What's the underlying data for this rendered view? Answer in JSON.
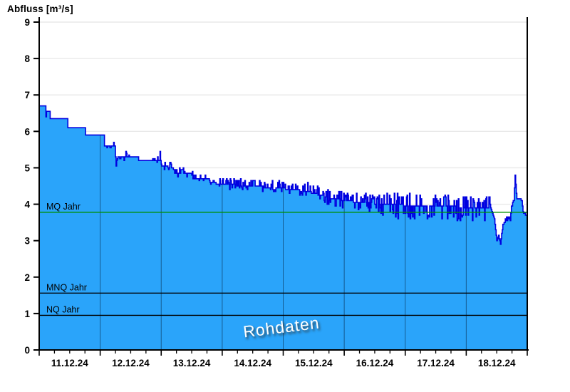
{
  "chart_data": {
    "type": "area",
    "title": "Abfluss [m³/s]",
    "watermark": "Rohdaten",
    "xlabel": "",
    "ylabel": "Abfluss [m³/s]",
    "ylim": [
      0,
      9
    ],
    "y_ticks": [
      0,
      1,
      2,
      3,
      4,
      5,
      6,
      7,
      8,
      9
    ],
    "days": 8,
    "day_labels": [
      "11.12.24",
      "12.12.24",
      "13.12.24",
      "14.12.24",
      "15.12.24",
      "16.12.24",
      "17.12.24",
      "18.12.24"
    ],
    "minor_ticks_per_day": 4,
    "grid": "horizontal-light, vertical day separators visible inside filled area",
    "legend": "none",
    "colors": {
      "fill": "#2aa4fa",
      "line": "#0000e0",
      "grid": "#e9e9e9",
      "day_separator": "rgba(0,20,40,0.5)",
      "axis": "#000000",
      "mq_line": "#009000",
      "ref_line": "#000000",
      "watermark_text": "#ffffff"
    },
    "reference_lines": [
      {
        "label": "MQ Jahr",
        "value": 3.78,
        "color": "#009000"
      },
      {
        "label": "MNQ Jahr",
        "value": 1.56,
        "color": "#000000"
      },
      {
        "label": "NQ Jahr",
        "value": 0.95,
        "color": "#000000"
      }
    ],
    "series_name": "Abfluss Rohdaten",
    "series_note": "Raw 15-min discharge data, stepped recession from 6.7 to ~3.9 m³/s with increasing measurement noise, a dip to ~2.9 late on 18.12 and a short peak to ~4.8 before ending near 3.7",
    "envelope": [
      [
        0.0,
        6.7
      ],
      [
        0.1,
        6.7
      ],
      [
        0.11,
        6.4
      ],
      [
        0.12,
        6.55
      ],
      [
        0.17,
        6.55
      ],
      [
        0.18,
        6.35
      ],
      [
        0.46,
        6.35
      ],
      [
        0.47,
        6.1
      ],
      [
        0.75,
        6.1
      ],
      [
        0.76,
        5.9
      ],
      [
        1.06,
        5.9
      ],
      [
        1.07,
        5.6
      ],
      [
        1.24,
        5.6
      ],
      [
        1.26,
        5.05
      ],
      [
        1.28,
        5.3
      ],
      [
        1.41,
        5.3
      ],
      [
        1.42,
        5.45
      ],
      [
        1.43,
        5.3
      ],
      [
        1.62,
        5.3
      ],
      [
        1.63,
        5.2
      ],
      [
        1.97,
        5.2
      ],
      [
        1.98,
        5.45
      ],
      [
        1.99,
        5.2
      ],
      [
        2.01,
        5.05
      ],
      [
        2.2,
        5.0
      ],
      [
        2.22,
        4.85
      ],
      [
        2.5,
        4.85
      ],
      [
        2.52,
        4.7
      ],
      [
        2.78,
        4.7
      ],
      [
        2.8,
        4.6
      ],
      [
        3.0,
        4.55
      ],
      [
        3.45,
        4.5
      ],
      [
        3.9,
        4.45
      ],
      [
        4.4,
        4.35
      ],
      [
        4.7,
        4.2
      ],
      [
        5.0,
        4.1
      ],
      [
        5.6,
        4.0
      ],
      [
        6.3,
        3.95
      ],
      [
        7.4,
        3.9
      ],
      [
        7.46,
        3.6
      ],
      [
        7.5,
        3.0
      ],
      [
        7.53,
        3.15
      ],
      [
        7.56,
        2.92
      ],
      [
        7.6,
        3.45
      ],
      [
        7.66,
        3.55
      ],
      [
        7.72,
        3.65
      ],
      [
        7.76,
        4.05
      ],
      [
        7.78,
        4.12
      ],
      [
        7.79,
        4.45
      ],
      [
        7.795,
        4.78
      ],
      [
        7.805,
        4.78
      ],
      [
        7.815,
        4.35
      ],
      [
        7.83,
        4.15
      ],
      [
        7.91,
        4.12
      ],
      [
        7.93,
        3.8
      ],
      [
        7.97,
        3.7
      ],
      [
        8.0,
        3.72
      ]
    ],
    "noise_segments": [
      {
        "from": 1.1,
        "to": 2.0,
        "p_up": 0.06,
        "amp_up": 0.12,
        "p_down": 0.04,
        "amp_down": 0.08
      },
      {
        "from": 2.0,
        "to": 3.0,
        "p_up": 0.22,
        "amp_up": 0.17,
        "p_down": 0.1,
        "amp_down": 0.08
      },
      {
        "from": 3.0,
        "to": 4.4,
        "p_up": 0.3,
        "amp_up": 0.2,
        "p_down": 0.15,
        "amp_down": 0.12
      },
      {
        "from": 4.4,
        "to": 5.6,
        "p_up": 0.33,
        "amp_up": 0.27,
        "p_down": 0.2,
        "amp_down": 0.22
      },
      {
        "from": 5.6,
        "to": 7.4,
        "p_up": 0.34,
        "amp_up": 0.33,
        "p_down": 0.26,
        "amp_down": 0.38
      },
      {
        "from": 7.6,
        "to": 7.78,
        "p_up": 0.15,
        "amp_up": 0.1,
        "p_down": 0.1,
        "amp_down": 0.1
      }
    ]
  }
}
